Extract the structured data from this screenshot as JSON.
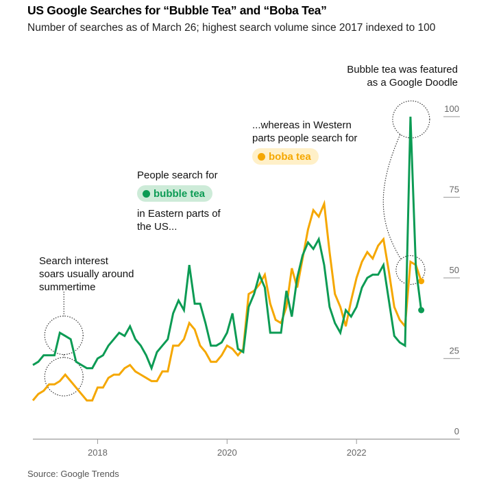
{
  "title": "US Google Searches for “Bubble Tea” and “Boba Tea”",
  "subtitle": "Number of searches as of March 26; highest search volume since 2017 indexed to 100",
  "source": "Source: Google Trends",
  "annotations": {
    "summer": [
      "Search interest",
      "soars usually around",
      "summertime"
    ],
    "eastern_prefix": "People search for",
    "eastern_suffix": [
      "in Eastern parts of",
      "the US..."
    ],
    "western_prefix": [
      "...whereas in Western",
      "parts people search for"
    ],
    "doodle": [
      "Bubble tea was featured",
      "as a Google Doodle"
    ]
  },
  "legend": {
    "bubble": "bubble tea",
    "boba": "boba tea"
  },
  "colors": {
    "bubble_tea": "#0c9b54",
    "boba_tea": "#f5a700",
    "axis": "#999999"
  },
  "chart_data": {
    "type": "line",
    "title": "US Google Searches for “Bubble Tea” and “Boba Tea”",
    "xlabel": "",
    "ylabel": "",
    "x_start": "2017-01",
    "x_frequency": "monthly",
    "x_ticks": [
      "2018",
      "2020",
      "2022"
    ],
    "y_ticks": [
      0,
      25,
      50,
      75,
      100
    ],
    "ylim": [
      0,
      100
    ],
    "grid": false,
    "y_axis_side": "right",
    "series": [
      {
        "name": "bubble tea",
        "color": "#0c9b54",
        "values": [
          23,
          24,
          26,
          26,
          26,
          33,
          32,
          31,
          24,
          23,
          22,
          22,
          25,
          26,
          29,
          31,
          33,
          32,
          35,
          31,
          29,
          26,
          22,
          27,
          29,
          31,
          39,
          43,
          40,
          54,
          42,
          42,
          36,
          29,
          29,
          30,
          33,
          39,
          28,
          27,
          41,
          45,
          51,
          47,
          33,
          33,
          33,
          46,
          38,
          50,
          57,
          61,
          59,
          62,
          54,
          41,
          36,
          33,
          40,
          38,
          41,
          47,
          50,
          51,
          51,
          54,
          43,
          32,
          30,
          29,
          100,
          53,
          40
        ]
      },
      {
        "name": "boba tea",
        "color": "#f5a700",
        "values": [
          12,
          14,
          15,
          17,
          17,
          18,
          20,
          18,
          16,
          14,
          12,
          12,
          16,
          16,
          19,
          20,
          20,
          22,
          23,
          21,
          20,
          19,
          18,
          18,
          21,
          21,
          29,
          29,
          31,
          36,
          34,
          29,
          27,
          24,
          24,
          26,
          29,
          28,
          26,
          28,
          45,
          46,
          48,
          51,
          42,
          37,
          36,
          41,
          53,
          47,
          56,
          65,
          71,
          69,
          73,
          58,
          45,
          41,
          35,
          43,
          50,
          55,
          58,
          56,
          60,
          62,
          52,
          41,
          37,
          35,
          55,
          54,
          49
        ]
      }
    ],
    "annotations": [
      {
        "text": "Search interest soars usually around summertime",
        "target": "2017-06"
      },
      {
        "text": "Bubble tea was featured as a Google Doodle",
        "target": "2022-11"
      }
    ]
  }
}
